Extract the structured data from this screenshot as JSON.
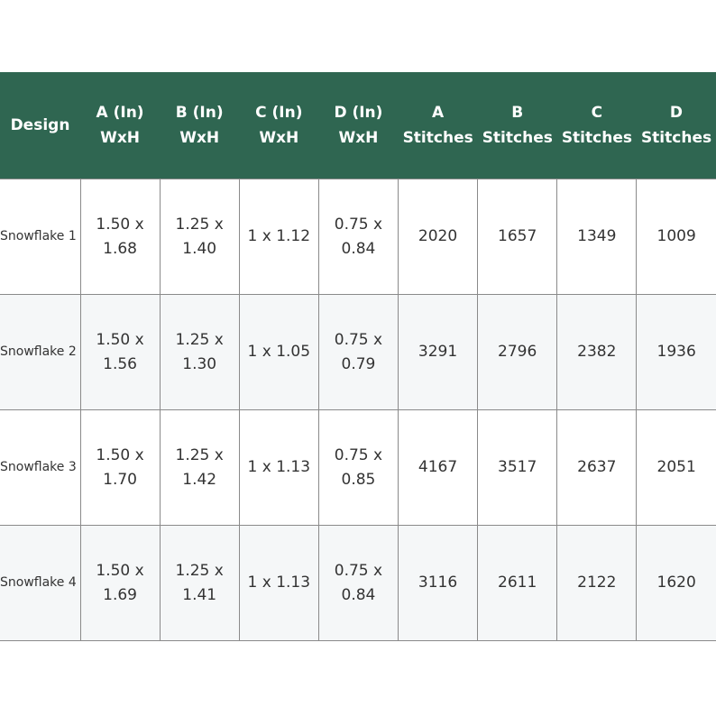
{
  "table": {
    "header": [
      "Design",
      "A (In) WxH",
      "B (In) WxH",
      "C (In) WxH",
      "D (In) WxH",
      "A Stitches",
      "B Stitches",
      "C Stitches",
      "D Stitches"
    ],
    "rows": [
      [
        "Snowflake 1",
        "1.50 x 1.68",
        "1.25 x 1.40",
        "1 x 1.12",
        "0.75 x 0.84",
        "2020",
        "1657",
        "1349",
        "1009"
      ],
      [
        "Snowflake 2",
        "1.50 x 1.56",
        "1.25 x 1.30",
        "1 x 1.05",
        "0.75 x 0.79",
        "3291",
        "2796",
        "2382",
        "1936"
      ],
      [
        "Snowflake 3",
        "1.50 x 1.70",
        "1.25 x 1.42",
        "1 x 1.13",
        "0.75 x 0.85",
        "4167",
        "3517",
        "2637",
        "2051"
      ],
      [
        "Snowflake 4",
        "1.50 x 1.69",
        "1.25 x 1.41",
        "1 x 1.13",
        "0.75 x 0.84",
        "3116",
        "2611",
        "2122",
        "1620"
      ]
    ]
  }
}
